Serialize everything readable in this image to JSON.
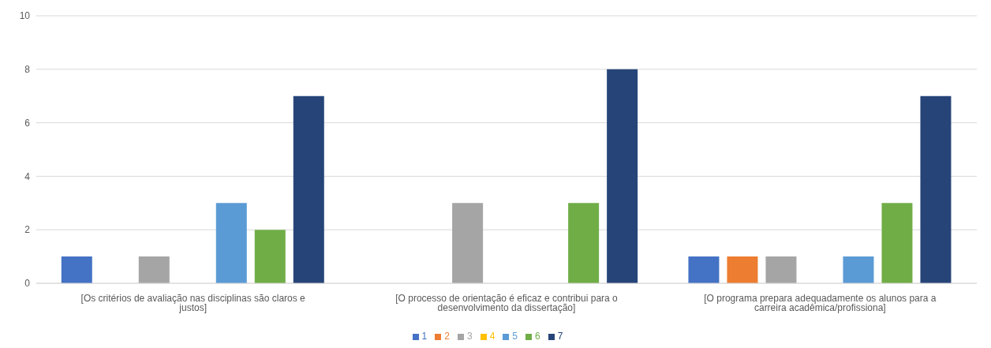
{
  "chart_data": {
    "type": "bar",
    "categories": [
      "[Os critérios de avaliação nas disciplinas são claros e justos]",
      "[O processo de orientação é eficaz e contribui para o desenvolvimento da dissertação]",
      "[O programa prepara adequadamente os alunos para a carreira acadêmica/profissiona]"
    ],
    "series": [
      {
        "name": "1",
        "color": "#4472c4",
        "values": [
          1,
          0,
          1
        ]
      },
      {
        "name": "2",
        "color": "#ed7d31",
        "values": [
          0,
          0,
          1
        ]
      },
      {
        "name": "3",
        "color": "#a5a5a5",
        "values": [
          1,
          3,
          1
        ]
      },
      {
        "name": "4",
        "color": "#ffc000",
        "values": [
          0,
          0,
          0
        ]
      },
      {
        "name": "5",
        "color": "#5b9bd5",
        "values": [
          3,
          0,
          1
        ]
      },
      {
        "name": "6",
        "color": "#70ad47",
        "values": [
          2,
          3,
          3
        ]
      },
      {
        "name": "7",
        "color": "#264478",
        "values": [
          7,
          8,
          7
        ]
      }
    ],
    "ylim": [
      0,
      10
    ],
    "yticks": [
      0,
      2,
      4,
      6,
      8,
      10
    ],
    "grid": "y",
    "legend": "bottom"
  }
}
